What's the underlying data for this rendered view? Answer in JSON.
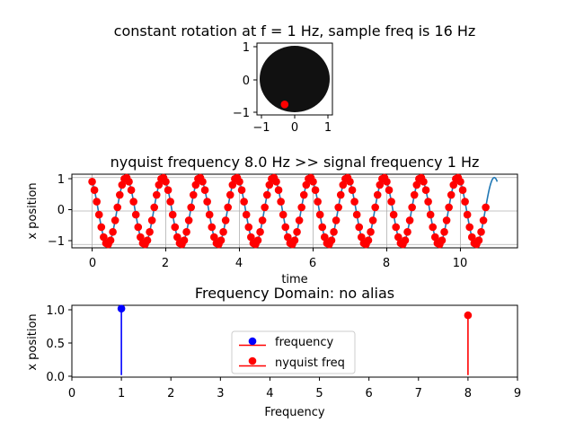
{
  "colors": {
    "disk": "#111111",
    "sample_marker": "#ff0000",
    "signal_line": "#1f77b4",
    "grid": "#b0b0b0",
    "frequency_stem": "#0000ff",
    "nyquist_stem": "#ff0000"
  },
  "chart_data": [
    {
      "type": "scatter",
      "title": "constant rotation at f = 1 Hz, sample freq is 16 Hz",
      "xlabel": "",
      "ylabel": "",
      "xlim": [
        -1.2,
        1.2
      ],
      "ylim": [
        -1.2,
        1.2
      ],
      "xticks": [
        "−1",
        "0",
        "1"
      ],
      "yticks": [
        "1",
        "0",
        "−1"
      ],
      "disk": {
        "center": [
          0,
          0
        ],
        "radius": 1
      },
      "point": {
        "x": -0.32,
        "y": -0.85
      }
    },
    {
      "type": "line",
      "title": "nyquist frequency 8.0 Hz >> signal frequency 1 Hz",
      "xlabel": "time",
      "ylabel": "x position",
      "xlim": [
        -0.55,
        11.55
      ],
      "ylim": [
        -1.1,
        1.1
      ],
      "xticks": [
        "0",
        "2",
        "4",
        "6",
        "8",
        "10"
      ],
      "yticks": [
        "1",
        "0",
        "−1"
      ],
      "grid": true,
      "signal": {
        "frequency_hz": 1,
        "sample_rate_hz": 16,
        "t_start": 0,
        "t_end": 11,
        "phase_turns": 0.08
      },
      "samples": {
        "t_start": 0,
        "t_end": 10.6875,
        "step": 0.0625
      }
    },
    {
      "type": "stem",
      "title": "Frequency Domain: no alias",
      "xlabel": "Frequency",
      "ylabel": "x position",
      "xlim": [
        0,
        9
      ],
      "ylim": [
        -0.03,
        1.05
      ],
      "xticks": [
        "0",
        "1",
        "2",
        "3",
        "4",
        "5",
        "6",
        "7",
        "8",
        "9"
      ],
      "yticks": [
        "1.0",
        "0.5",
        "0.0"
      ],
      "series": [
        {
          "name": "frequency",
          "x": 1,
          "y": 1.0
        },
        {
          "name": "nyquist freq",
          "x": 8,
          "y": 0.9
        }
      ],
      "legend": "center"
    }
  ]
}
